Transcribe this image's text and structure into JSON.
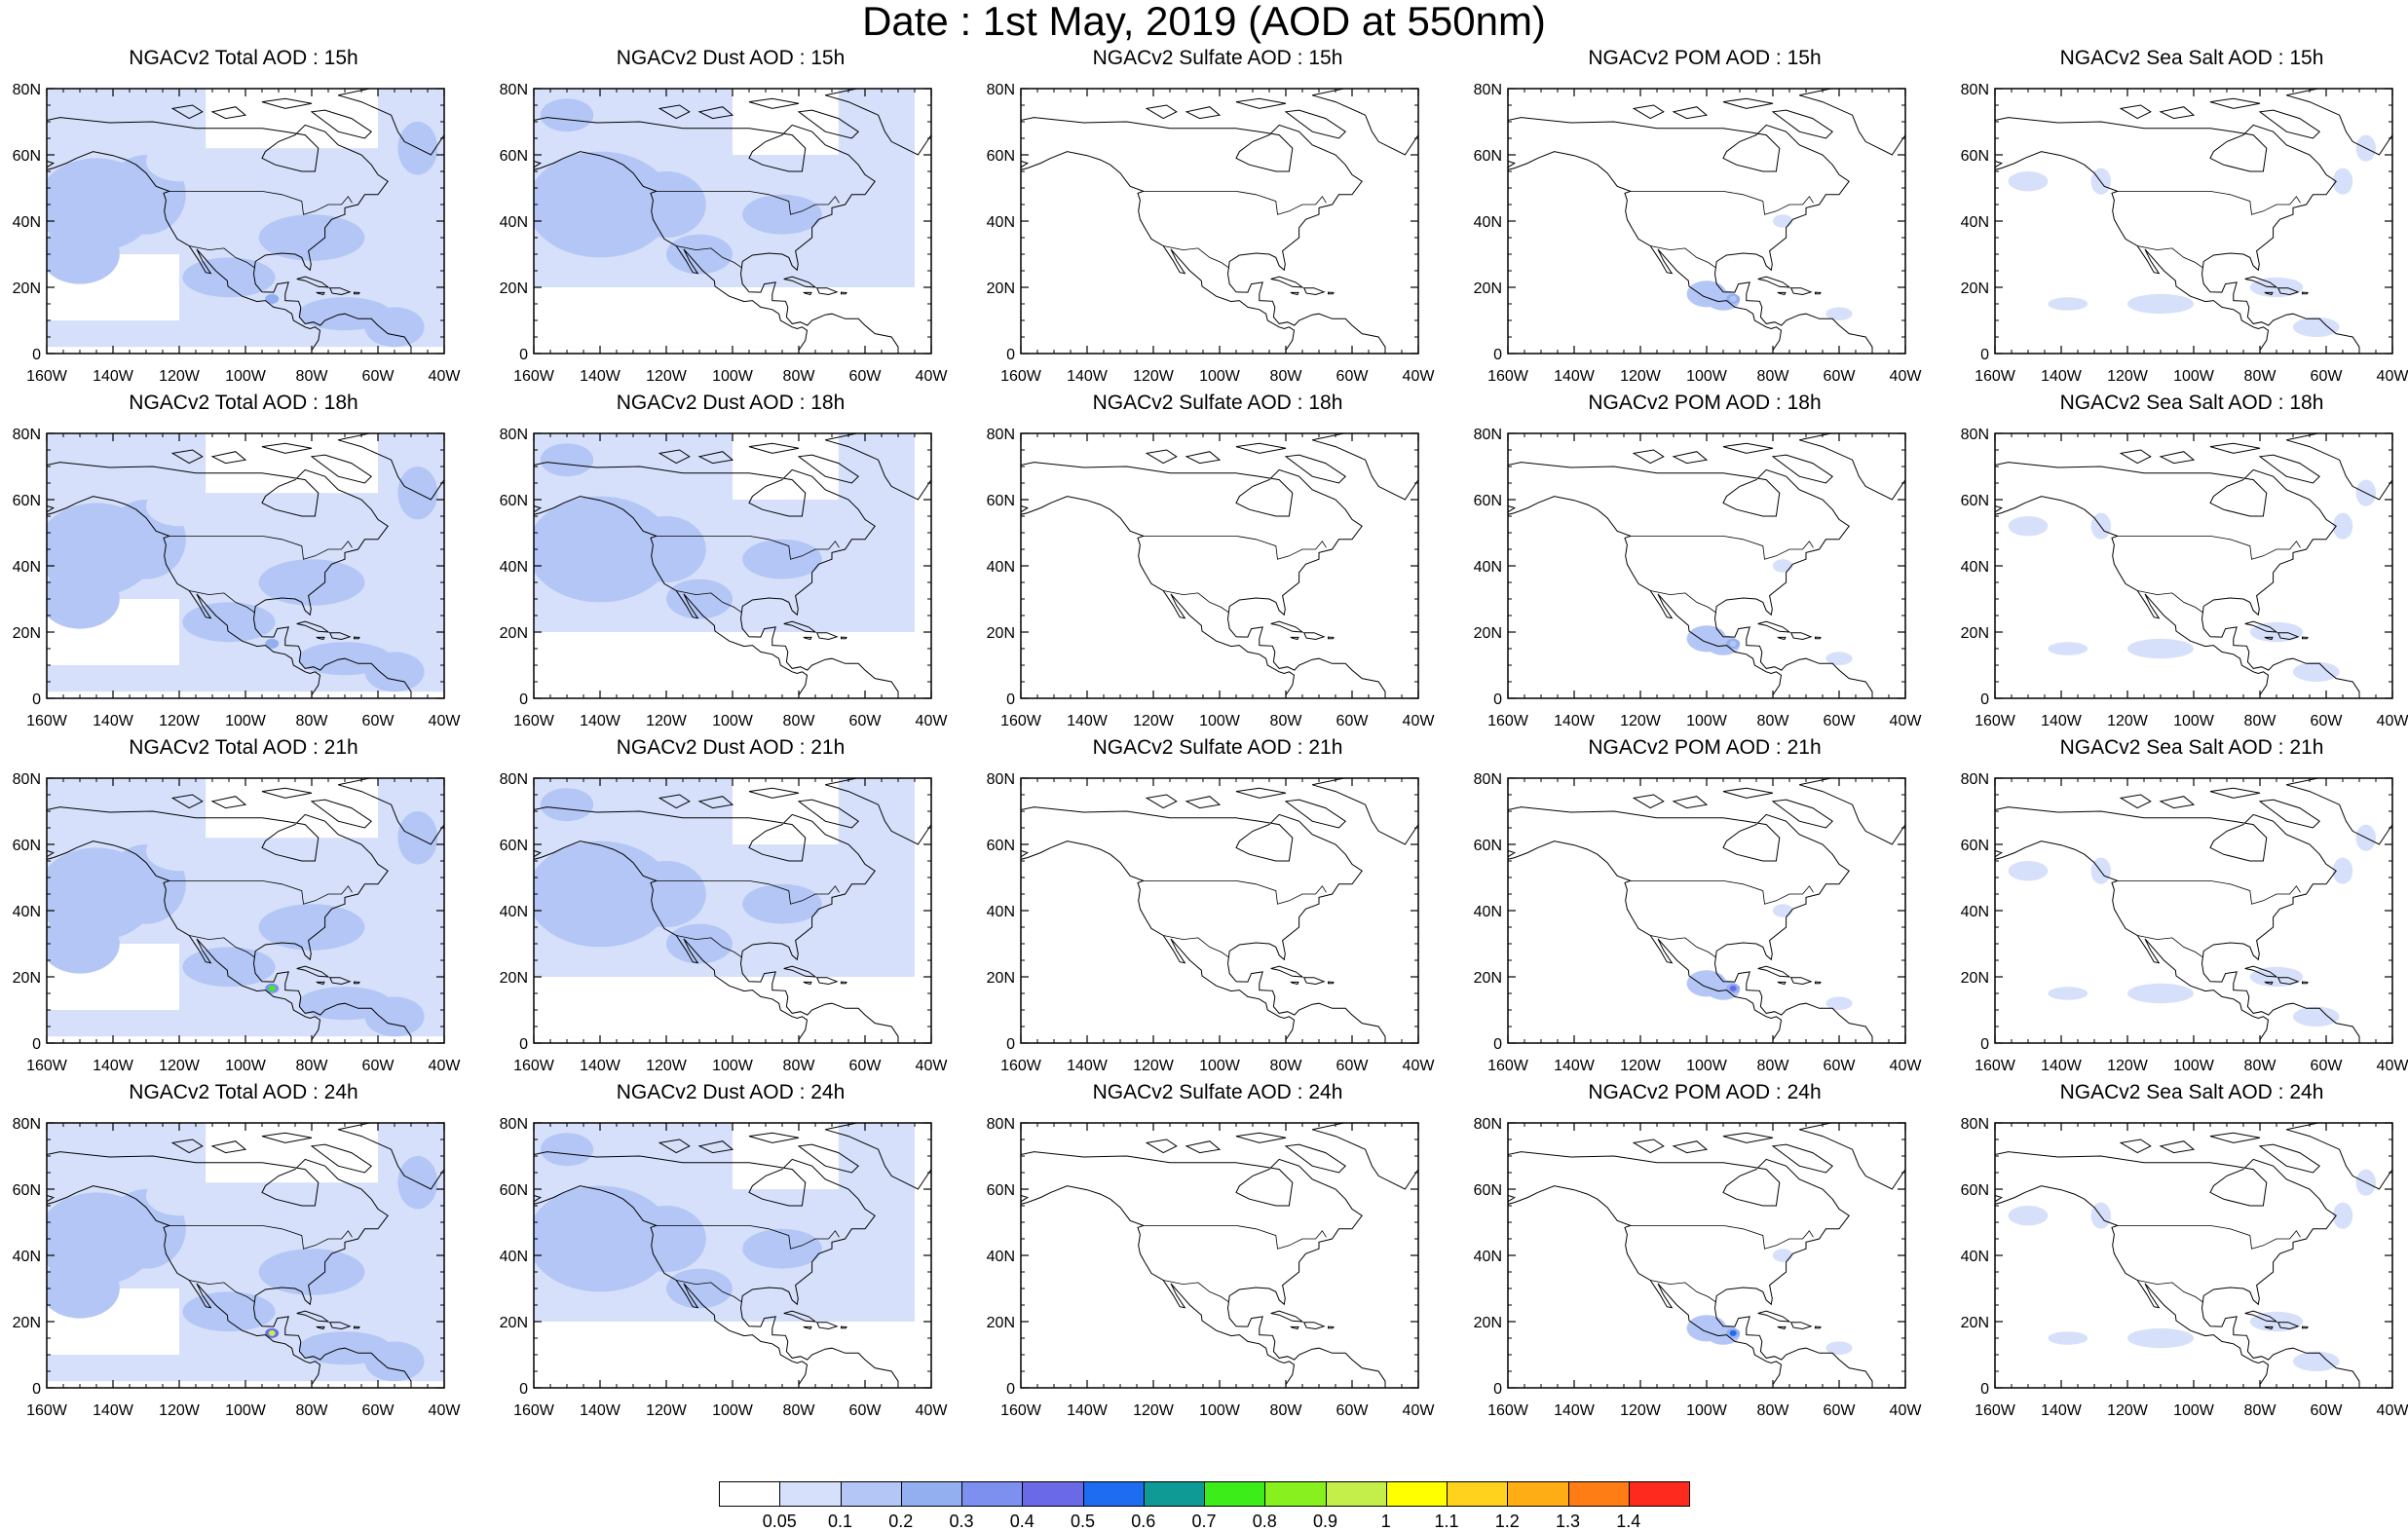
{
  "figure_title": "Date : 1st May, 2019 (AOD at 550nm)",
  "axes": {
    "x_tick_labels": [
      "160W",
      "140W",
      "120W",
      "100W",
      "80W",
      "60W",
      "40W"
    ],
    "y_tick_labels": [
      "0",
      "20N",
      "40N",
      "60N",
      "80N"
    ],
    "lon_range": [
      -160,
      -40
    ],
    "lat_range": [
      0,
      80
    ]
  },
  "panels": [
    {
      "title": "NGACv2 Total AOD : 15h",
      "species": "total",
      "hour": 15
    },
    {
      "title": "NGACv2 Dust AOD : 15h",
      "species": "dust",
      "hour": 15
    },
    {
      "title": "NGACv2 Sulfate AOD : 15h",
      "species": "sulfate",
      "hour": 15
    },
    {
      "title": "NGACv2 POM AOD : 15h",
      "species": "pom",
      "hour": 15
    },
    {
      "title": "NGACv2 Sea Salt AOD : 15h",
      "species": "seasalt",
      "hour": 15
    },
    {
      "title": "NGACv2 Total AOD : 18h",
      "species": "total",
      "hour": 18
    },
    {
      "title": "NGACv2 Dust AOD : 18h",
      "species": "dust",
      "hour": 18
    },
    {
      "title": "NGACv2 Sulfate AOD : 18h",
      "species": "sulfate",
      "hour": 18
    },
    {
      "title": "NGACv2 POM AOD : 18h",
      "species": "pom",
      "hour": 18
    },
    {
      "title": "NGACv2 Sea Salt AOD : 18h",
      "species": "seasalt",
      "hour": 18
    },
    {
      "title": "NGACv2 Total AOD : 21h",
      "species": "total",
      "hour": 21
    },
    {
      "title": "NGACv2 Dust AOD : 21h",
      "species": "dust",
      "hour": 21
    },
    {
      "title": "NGACv2 Sulfate AOD : 21h",
      "species": "sulfate",
      "hour": 21
    },
    {
      "title": "NGACv2 POM AOD : 21h",
      "species": "pom",
      "hour": 21
    },
    {
      "title": "NGACv2 Sea Salt AOD : 21h",
      "species": "seasalt",
      "hour": 21
    },
    {
      "title": "NGACv2 Total AOD : 24h",
      "species": "total",
      "hour": 24
    },
    {
      "title": "NGACv2 Dust AOD : 24h",
      "species": "dust",
      "hour": 24
    },
    {
      "title": "NGACv2 Sulfate AOD : 24h",
      "species": "sulfate",
      "hour": 24
    },
    {
      "title": "NGACv2 POM AOD : 24h",
      "species": "pom",
      "hour": 24
    },
    {
      "title": "NGACv2 Sea Salt  AOD : 24h",
      "species": "seasalt",
      "hour": 24
    }
  ],
  "colorbar": {
    "colors": [
      "#ffffff",
      "#d6e0fa",
      "#b3c6f5",
      "#94afef",
      "#7d90f0",
      "#6a6ae8",
      "#1e6cf0",
      "#0f9a96",
      "#3ced1a",
      "#88f01e",
      "#c4ee4a",
      "#ffff00",
      "#ffd21e",
      "#ffad14",
      "#ff7d14",
      "#ff2a1e"
    ],
    "labels": [
      "0.05",
      "0.1",
      "0.2",
      "0.3",
      "0.4",
      "0.5",
      "0.6",
      "0.7",
      "0.8",
      "0.9",
      "1",
      "1.1",
      "1.2",
      "1.3",
      "1.4"
    ]
  },
  "chart_data": [
    {
      "type": "heatmap",
      "title": "NGACv2 Total AOD : 15h",
      "x_range": [
        "160W",
        "40W"
      ],
      "y_range": [
        "0",
        "80N"
      ],
      "dominant_levels": [
        "0.05-0.1",
        "0.1-0.2"
      ],
      "max_level": "0.2-0.3"
    },
    {
      "type": "heatmap",
      "title": "NGACv2 Dust AOD : 15h",
      "x_range": [
        "160W",
        "40W"
      ],
      "y_range": [
        "0",
        "80N"
      ],
      "dominant_levels": [
        "0.05-0.1",
        "0.1-0.2"
      ],
      "max_level": "0.1-0.2"
    },
    {
      "type": "heatmap",
      "title": "NGACv2 Sulfate AOD : 15h",
      "x_range": [
        "160W",
        "40W"
      ],
      "y_range": [
        "0",
        "80N"
      ],
      "dominant_levels": [
        "<0.05"
      ],
      "max_level": "<0.05"
    },
    {
      "type": "heatmap",
      "title": "NGACv2 POM AOD : 15h",
      "x_range": [
        "160W",
        "40W"
      ],
      "y_range": [
        "0",
        "80N"
      ],
      "dominant_levels": [
        "<0.05"
      ],
      "max_level": "0.1-0.2"
    },
    {
      "type": "heatmap",
      "title": "NGACv2 Sea Salt AOD : 15h",
      "x_range": [
        "160W",
        "40W"
      ],
      "y_range": [
        "0",
        "80N"
      ],
      "dominant_levels": [
        "<0.05"
      ],
      "max_level": "0.05-0.1"
    },
    {
      "type": "heatmap",
      "title": "NGACv2 Total AOD : 18h",
      "x_range": [
        "160W",
        "40W"
      ],
      "y_range": [
        "0",
        "80N"
      ],
      "dominant_levels": [
        "0.05-0.1",
        "0.1-0.2"
      ],
      "max_level": "0.2-0.3"
    },
    {
      "type": "heatmap",
      "title": "NGACv2 Dust AOD : 18h",
      "x_range": [
        "160W",
        "40W"
      ],
      "y_range": [
        "0",
        "80N"
      ],
      "dominant_levels": [
        "0.05-0.1",
        "0.1-0.2"
      ],
      "max_level": "0.1-0.2"
    },
    {
      "type": "heatmap",
      "title": "NGACv2 Sulfate AOD : 18h",
      "x_range": [
        "160W",
        "40W"
      ],
      "y_range": [
        "0",
        "80N"
      ],
      "dominant_levels": [
        "<0.05"
      ],
      "max_level": "<0.05"
    },
    {
      "type": "heatmap",
      "title": "NGACv2 POM AOD : 18h",
      "x_range": [
        "160W",
        "40W"
      ],
      "y_range": [
        "0",
        "80N"
      ],
      "dominant_levels": [
        "<0.05"
      ],
      "max_level": "0.1-0.2"
    },
    {
      "type": "heatmap",
      "title": "NGACv2 Sea Salt AOD : 18h",
      "x_range": [
        "160W",
        "40W"
      ],
      "y_range": [
        "0",
        "80N"
      ],
      "dominant_levels": [
        "<0.05"
      ],
      "max_level": "0.05-0.1"
    },
    {
      "type": "heatmap",
      "title": "NGACv2 Total AOD : 21h",
      "x_range": [
        "160W",
        "40W"
      ],
      "y_range": [
        "0",
        "80N"
      ],
      "dominant_levels": [
        "0.05-0.1",
        "0.1-0.2"
      ],
      "max_level": "0.7-0.8"
    },
    {
      "type": "heatmap",
      "title": "NGACv2 Dust AOD : 21h",
      "x_range": [
        "160W",
        "40W"
      ],
      "y_range": [
        "0",
        "80N"
      ],
      "dominant_levels": [
        "0.05-0.1",
        "0.1-0.2"
      ],
      "max_level": "0.1-0.2"
    },
    {
      "type": "heatmap",
      "title": "NGACv2 Sulfate AOD : 21h",
      "x_range": [
        "160W",
        "40W"
      ],
      "y_range": [
        "0",
        "80N"
      ],
      "dominant_levels": [
        "<0.05"
      ],
      "max_level": "<0.05"
    },
    {
      "type": "heatmap",
      "title": "NGACv2 POM AOD : 21h",
      "x_range": [
        "160W",
        "40W"
      ],
      "y_range": [
        "0",
        "80N"
      ],
      "dominant_levels": [
        "<0.05"
      ],
      "max_level": "0.3-0.4"
    },
    {
      "type": "heatmap",
      "title": "NGACv2 Sea Salt AOD : 21h",
      "x_range": [
        "160W",
        "40W"
      ],
      "y_range": [
        "0",
        "80N"
      ],
      "dominant_levels": [
        "<0.05"
      ],
      "max_level": "0.05-0.1"
    },
    {
      "type": "heatmap",
      "title": "NGACv2 Total AOD : 24h",
      "x_range": [
        "160W",
        "40W"
      ],
      "y_range": [
        "0",
        "80N"
      ],
      "dominant_levels": [
        "0.05-0.1",
        "0.1-0.2"
      ],
      "max_level": "0.9-1"
    },
    {
      "type": "heatmap",
      "title": "NGACv2 Dust AOD : 24h",
      "x_range": [
        "160W",
        "40W"
      ],
      "y_range": [
        "0",
        "80N"
      ],
      "dominant_levels": [
        "0.05-0.1",
        "0.1-0.2"
      ],
      "max_level": "0.1-0.2"
    },
    {
      "type": "heatmap",
      "title": "NGACv2 Sulfate AOD : 24h",
      "x_range": [
        "160W",
        "40W"
      ],
      "y_range": [
        "0",
        "80N"
      ],
      "dominant_levels": [
        "<0.05"
      ],
      "max_level": "<0.05"
    },
    {
      "type": "heatmap",
      "title": "NGACv2 POM AOD : 24h",
      "x_range": [
        "160W",
        "40W"
      ],
      "y_range": [
        "0",
        "80N"
      ],
      "dominant_levels": [
        "<0.05"
      ],
      "max_level": "0.4-0.5"
    },
    {
      "type": "heatmap",
      "title": "NGACv2 Sea Salt  AOD : 24h",
      "x_range": [
        "160W",
        "40W"
      ],
      "y_range": [
        "0",
        "80N"
      ],
      "dominant_levels": [
        "<0.05"
      ],
      "max_level": "0.05-0.1"
    }
  ]
}
